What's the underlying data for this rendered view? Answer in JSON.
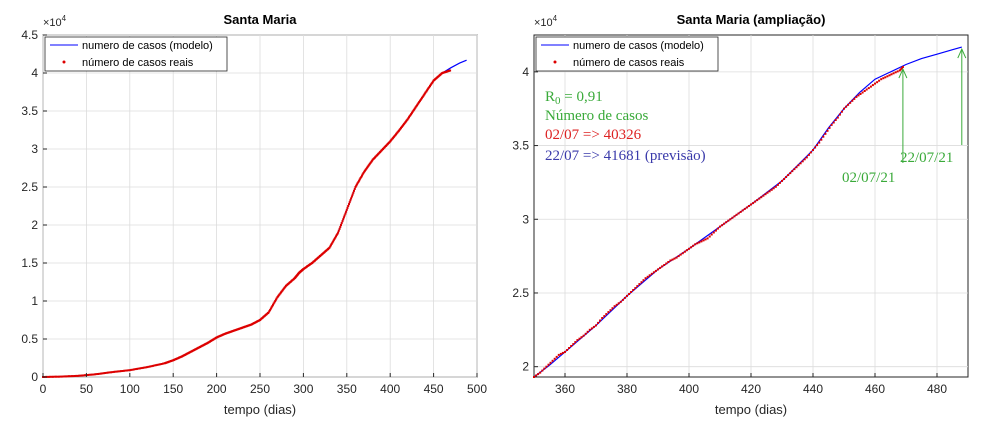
{
  "chart_data": [
    {
      "type": "line",
      "title": "Santa Maria",
      "xlabel": "tempo (dias)",
      "ylabel": "",
      "xlim": [
        0,
        500
      ],
      "ylim": [
        0,
        45000
      ],
      "y_exponent_label": "×10",
      "y_exponent": "4",
      "xticks": [
        "0",
        "50",
        "100",
        "150",
        "200",
        "250",
        "300",
        "350",
        "400",
        "450",
        "500"
      ],
      "yticks": [
        "0",
        "0.5",
        "1",
        "1.5",
        "2",
        "2.5",
        "3",
        "3.5",
        "4",
        "4.5"
      ],
      "grid": true,
      "legend_position": "top-left",
      "series": [
        {
          "name": "numero de casos (modelo)",
          "color": "#0000ff",
          "style": "line",
          "x": [
            0,
            20,
            40,
            60,
            80,
            100,
            120,
            140,
            150,
            160,
            170,
            180,
            190,
            200,
            210,
            220,
            230,
            240,
            250,
            260,
            270,
            280,
            290,
            295,
            300,
            310,
            320,
            330,
            340,
            350,
            360,
            370,
            380,
            390,
            400,
            410,
            420,
            430,
            440,
            450,
            460,
            470,
            480,
            488
          ],
          "y": [
            0,
            50,
            150,
            350,
            650,
            900,
            1300,
            1800,
            2200,
            2700,
            3300,
            3900,
            4500,
            5200,
            5700,
            6100,
            6500,
            6900,
            7500,
            8500,
            10500,
            12000,
            13000,
            13700,
            14200,
            15000,
            16000,
            17000,
            19000,
            22000,
            25000,
            27000,
            28600,
            29800,
            31000,
            32400,
            33900,
            35600,
            37300,
            39000,
            40000,
            40700,
            41300,
            41681
          ]
        },
        {
          "name": "número de casos reais",
          "color": "#dd0000",
          "style": "dots",
          "x": [
            0,
            20,
            40,
            60,
            80,
            100,
            120,
            140,
            150,
            160,
            170,
            180,
            190,
            200,
            210,
            220,
            230,
            240,
            250,
            260,
            270,
            280,
            290,
            295,
            300,
            310,
            320,
            330,
            340,
            350,
            360,
            370,
            380,
            390,
            400,
            410,
            420,
            430,
            440,
            450,
            460,
            469
          ],
          "y": [
            0,
            50,
            150,
            350,
            650,
            900,
            1300,
            1800,
            2200,
            2700,
            3300,
            3900,
            4500,
            5200,
            5700,
            6100,
            6500,
            6900,
            7500,
            8500,
            10500,
            12000,
            13000,
            13700,
            14200,
            15000,
            16000,
            17000,
            19000,
            22000,
            25000,
            27000,
            28600,
            29800,
            31000,
            32400,
            33900,
            35600,
            37300,
            39000,
            40000,
            40326
          ]
        }
      ]
    },
    {
      "type": "line",
      "title": "Santa Maria (ampliação)",
      "xlabel": "tempo (dias)",
      "ylabel": "",
      "xlim": [
        350,
        490
      ],
      "ylim": [
        19300,
        42500
      ],
      "y_exponent_label": "×10",
      "y_exponent": "4",
      "xticks": [
        "360",
        "380",
        "400",
        "420",
        "440",
        "460",
        "480"
      ],
      "yticks": [
        "2",
        "2.5",
        "3",
        "3.5",
        "4"
      ],
      "grid": true,
      "legend_position": "top-left",
      "series": [
        {
          "name": "numero de casos (modelo)",
          "color": "#0000ff",
          "style": "line",
          "x": [
            350,
            355,
            360,
            370,
            380,
            390,
            400,
            410,
            420,
            430,
            440,
            445,
            450,
            455,
            460,
            465,
            470,
            475,
            480,
            485,
            488
          ],
          "y": [
            19300,
            20100,
            21000,
            22800,
            24800,
            26600,
            28000,
            29500,
            31000,
            32600,
            34700,
            36200,
            37500,
            38600,
            39500,
            40000,
            40500,
            40900,
            41200,
            41500,
            41681
          ]
        },
        {
          "name": "número de casos reais",
          "color": "#dd0000",
          "style": "dots",
          "x": [
            350,
            352,
            354,
            356,
            358,
            360,
            362,
            364,
            366,
            368,
            370,
            372,
            374,
            376,
            378,
            380,
            382,
            384,
            386,
            388,
            390,
            392,
            394,
            396,
            398,
            400,
            402,
            404,
            406,
            408,
            410,
            412,
            414,
            416,
            418,
            420,
            422,
            424,
            426,
            428,
            430,
            432,
            434,
            436,
            438,
            440,
            442,
            444,
            446,
            448,
            450,
            452,
            454,
            456,
            458,
            460,
            462,
            464,
            466,
            468,
            469
          ],
          "y": [
            19300,
            19600,
            20000,
            20400,
            20800,
            21000,
            21400,
            21800,
            22100,
            22500,
            22800,
            23300,
            23700,
            24100,
            24400,
            24800,
            25200,
            25600,
            26000,
            26300,
            26600,
            26900,
            27200,
            27400,
            27700,
            28000,
            28300,
            28500,
            28700,
            29100,
            29500,
            29800,
            30100,
            30400,
            30700,
            31000,
            31300,
            31600,
            31900,
            32200,
            32600,
            33000,
            33400,
            33800,
            34200,
            34700,
            35200,
            35800,
            36400,
            36900,
            37500,
            37900,
            38300,
            38600,
            38900,
            39200,
            39500,
            39700,
            39900,
            40100,
            40326
          ]
        }
      ],
      "annotations": [
        {
          "text": "R",
          "color": "#3aaa3a"
        },
        {
          "text": "0",
          "color": "#3aaa3a"
        },
        {
          "text": " = 0,91",
          "color": "#3aaa3a"
        },
        {
          "text": "Número de casos",
          "color": "#3aaa3a"
        },
        {
          "text": "02/07 => 40326",
          "color": "#dd2222"
        },
        {
          "text": "22/07 => 41681 (previsão)",
          "color": "#3a3aaa"
        },
        {
          "text": "02/07/21",
          "color": "#3aaa3a",
          "arrow_x": 469,
          "arrow_y": 40326
        },
        {
          "text": "22/07/21",
          "color": "#3aaa3a",
          "arrow_x": 488,
          "arrow_y": 41681
        }
      ]
    }
  ]
}
